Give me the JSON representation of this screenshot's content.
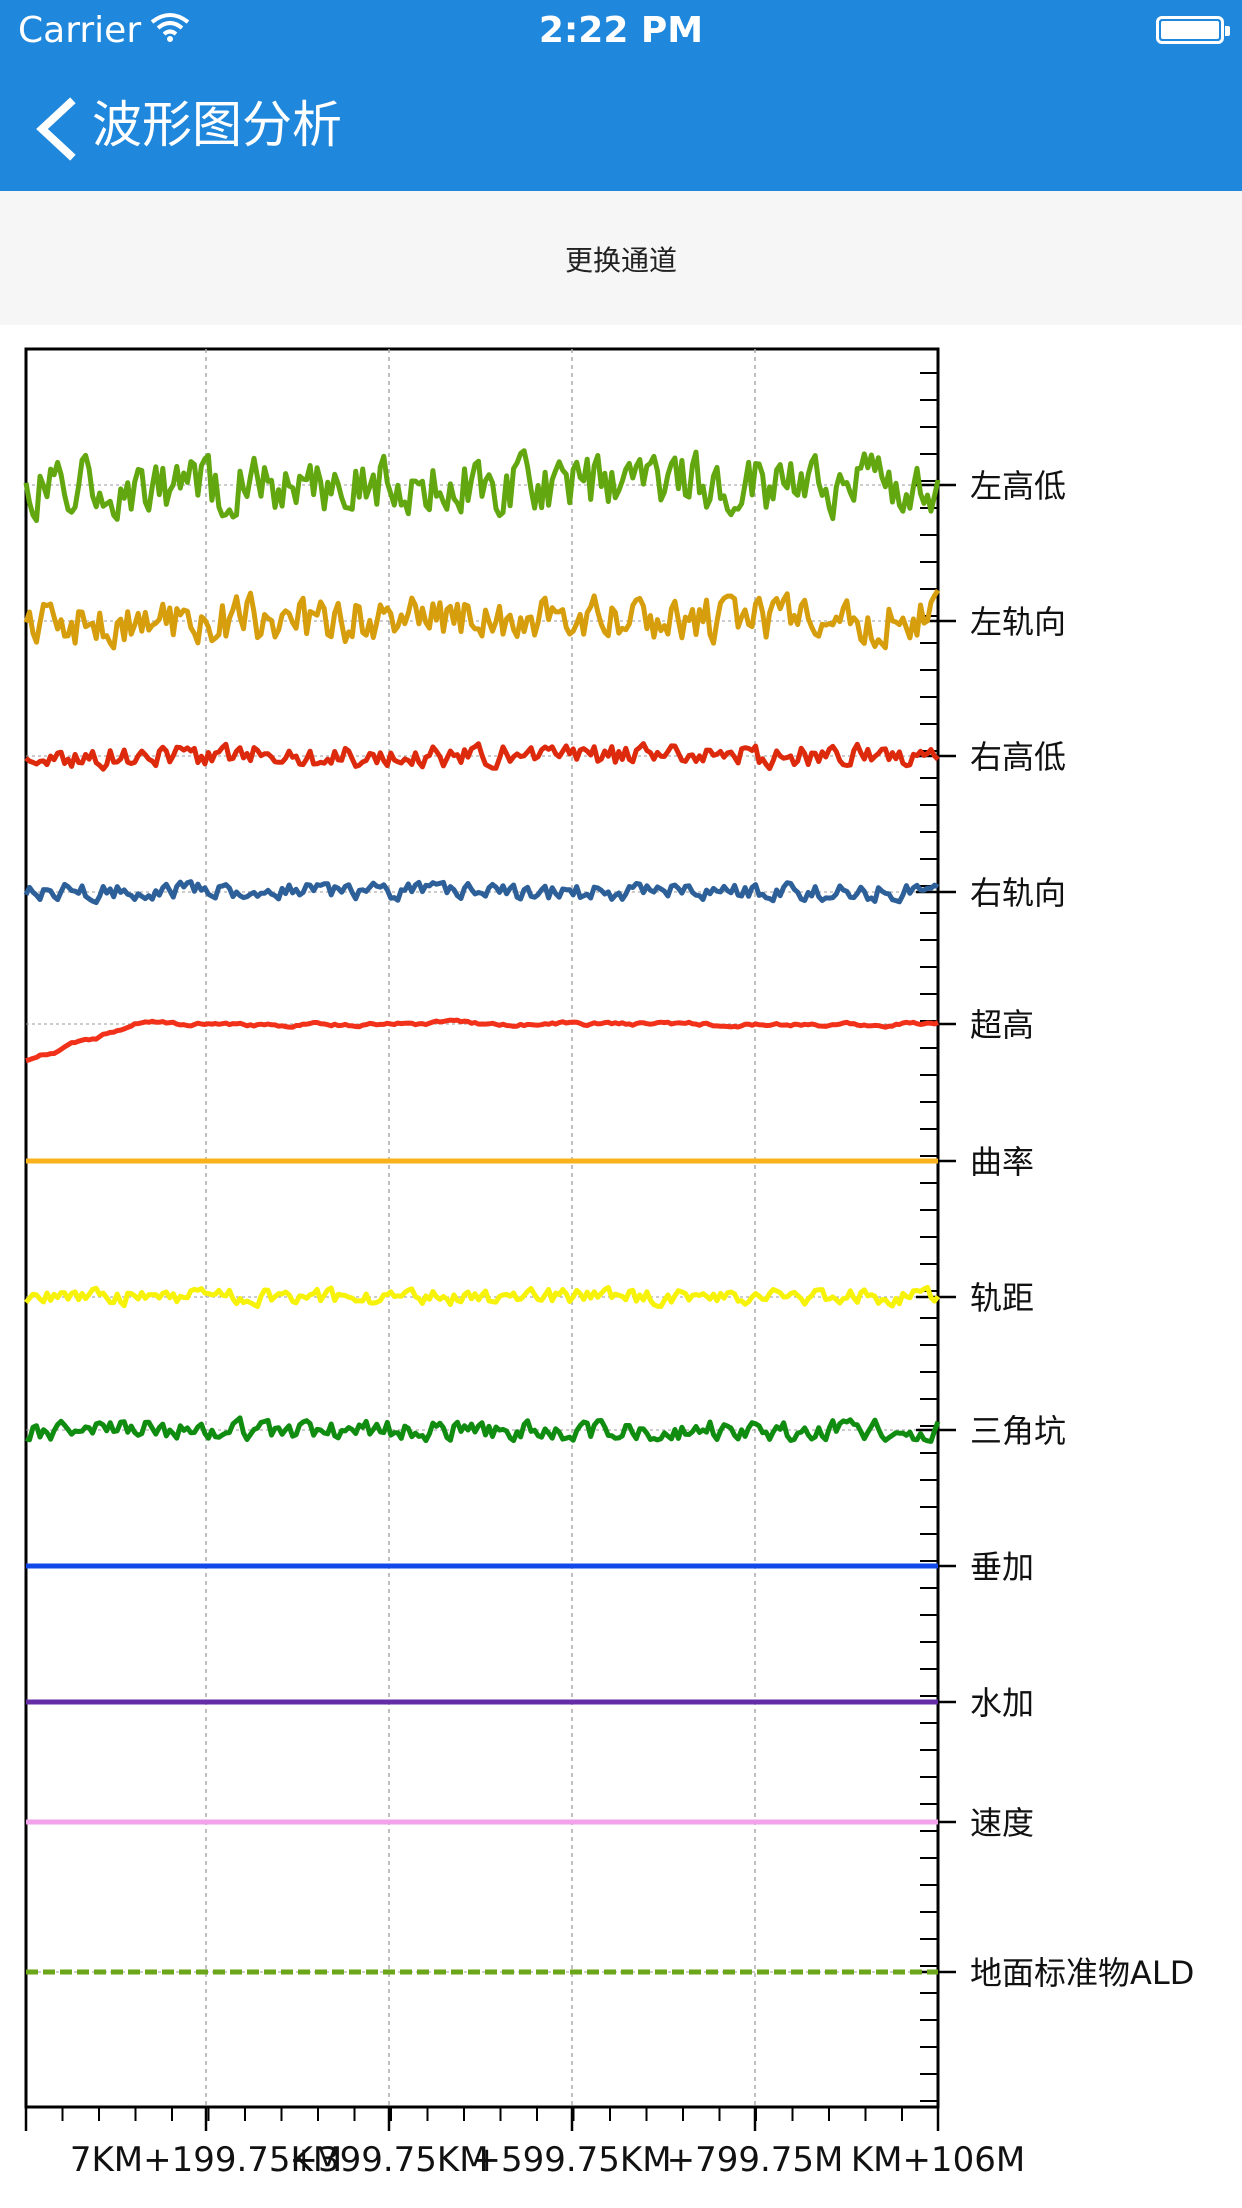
{
  "status_bar": {
    "carrier": "Carrier",
    "time": "2:22 PM"
  },
  "nav": {
    "title": "波形图分析",
    "back_icon": "chevron-left-icon"
  },
  "toolbar": {
    "switch_channel_label": "更换通道"
  },
  "colors": {
    "bar_blue": "#1f87dc"
  },
  "chart_data": {
    "type": "line",
    "x_ticks": [
      "7KM+199.75KM",
      "+399.75KM",
      "+599.75KM",
      "+799.75M",
      "KM+106M"
    ],
    "series": [
      {
        "name": "左高低",
        "color": "#62a70f",
        "amp": 26,
        "style": "solid",
        "seed": 1
      },
      {
        "name": "左轨向",
        "color": "#d69e0c",
        "amp": 22,
        "style": "solid",
        "seed": 2
      },
      {
        "name": "右高低",
        "color": "#dd2a0c",
        "amp": 10,
        "style": "solid",
        "seed": 3
      },
      {
        "name": "右轨向",
        "color": "#2d5f99",
        "amp": 8,
        "style": "solid",
        "seed": 4
      },
      {
        "name": "超高",
        "color": "#f1311a",
        "amp": 3,
        "style": "ramp",
        "seed": 5
      },
      {
        "name": "曲率",
        "color": "#f9b21c",
        "amp": 0,
        "style": "flat",
        "seed": 6
      },
      {
        "name": "轨距",
        "color": "#f6f20a",
        "amp": 7,
        "style": "solid",
        "seed": 7
      },
      {
        "name": "三角坑",
        "color": "#108c10",
        "amp": 9,
        "style": "solid",
        "seed": 8
      },
      {
        "name": "垂加",
        "color": "#1148e8",
        "amp": 0,
        "style": "flat",
        "seed": 9
      },
      {
        "name": "水加",
        "color": "#642da6",
        "amp": 0,
        "style": "flat",
        "seed": 10
      },
      {
        "name": "速度",
        "color": "#f2a2e8",
        "amp": 0,
        "style": "flat",
        "seed": 11
      },
      {
        "name": "地面标准物ALD",
        "color": "#6aa51a",
        "amp": 0,
        "style": "dashed",
        "seed": 12
      }
    ]
  }
}
